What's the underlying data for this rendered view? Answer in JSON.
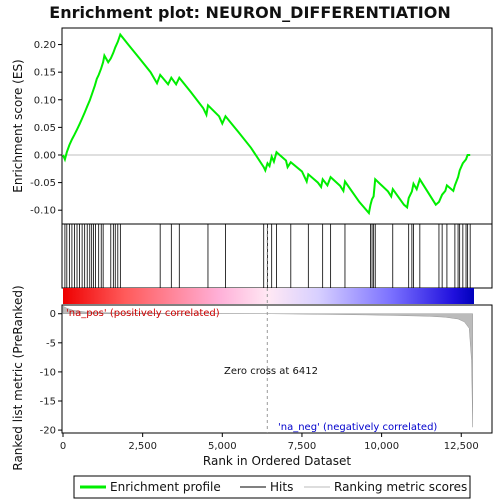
{
  "chart_data": {
    "type": "line",
    "title": "Enrichment plot: NEURON_DIFFERENTIATION",
    "xlabel": "Rank in Ordered Dataset",
    "ylabel_top": "Enrichment score (ES)",
    "ylabel_bottom": "Ranked list metric (PreRanked)",
    "xlim": [
      0,
      12900
    ],
    "ylim_top": [
      -0.125,
      0.23
    ],
    "ylim_bottom": [
      -20.5,
      1.5
    ],
    "x_ticks": [
      0,
      2500,
      5000,
      7500,
      10000,
      12500
    ],
    "x_tick_labels": [
      "0",
      "2,500",
      "5,000",
      "7,500",
      "10,000",
      "12,500"
    ],
    "y_ticks_top": [
      -0.1,
      -0.05,
      0.0,
      0.05,
      0.1,
      0.15,
      0.2
    ],
    "y_tick_labels_top": [
      "-0.10",
      "-0.05",
      "0.00",
      "0.05",
      "0.10",
      "0.15",
      "0.20"
    ],
    "y_ticks_bottom": [
      0,
      -5,
      -10,
      -15,
      -20
    ],
    "y_tick_labels_bottom": [
      "0",
      "-5",
      "-10",
      "-15",
      "-20"
    ],
    "colors": {
      "es_line": "#00ee00",
      "hits": "#000000",
      "metric": "#bbbbbb",
      "zero_line": "#999999",
      "pos_label": "#cc0000",
      "neg_label": "#0000cc"
    },
    "enrichment_profile": [
      [
        0,
        0.0
      ],
      [
        60,
        -0.008
      ],
      [
        120,
        0.005
      ],
      [
        200,
        0.018
      ],
      [
        280,
        0.028
      ],
      [
        360,
        0.037
      ],
      [
        440,
        0.046
      ],
      [
        520,
        0.056
      ],
      [
        600,
        0.066
      ],
      [
        680,
        0.077
      ],
      [
        760,
        0.088
      ],
      [
        840,
        0.099
      ],
      [
        920,
        0.112
      ],
      [
        1000,
        0.126
      ],
      [
        1060,
        0.138
      ],
      [
        1120,
        0.145
      ],
      [
        1200,
        0.157
      ],
      [
        1260,
        0.168
      ],
      [
        1300,
        0.18
      ],
      [
        1360,
        0.174
      ],
      [
        1420,
        0.168
      ],
      [
        1500,
        0.175
      ],
      [
        1580,
        0.185
      ],
      [
        1640,
        0.195
      ],
      [
        1720,
        0.205
      ],
      [
        1800,
        0.218
      ],
      [
        2050,
        0.2
      ],
      [
        2400,
        0.175
      ],
      [
        2750,
        0.15
      ],
      [
        2950,
        0.13
      ],
      [
        3050,
        0.145
      ],
      [
        3300,
        0.128
      ],
      [
        3400,
        0.14
      ],
      [
        3550,
        0.128
      ],
      [
        3650,
        0.14
      ],
      [
        4000,
        0.115
      ],
      [
        4400,
        0.085
      ],
      [
        4500,
        0.073
      ],
      [
        4550,
        0.09
      ],
      [
        4900,
        0.07
      ],
      [
        5000,
        0.057
      ],
      [
        5100,
        0.07
      ],
      [
        5500,
        0.042
      ],
      [
        5900,
        0.013
      ],
      [
        6300,
        -0.022
      ],
      [
        6350,
        -0.028
      ],
      [
        6420,
        -0.015
      ],
      [
        6480,
        -0.02
      ],
      [
        6550,
        -0.003
      ],
      [
        6620,
        -0.012
      ],
      [
        6700,
        0.005
      ],
      [
        7000,
        -0.01
      ],
      [
        7050,
        -0.022
      ],
      [
        7150,
        -0.013
      ],
      [
        7500,
        -0.03
      ],
      [
        7650,
        -0.048
      ],
      [
        7700,
        -0.035
      ],
      [
        8000,
        -0.05
      ],
      [
        8100,
        -0.058
      ],
      [
        8150,
        -0.044
      ],
      [
        8300,
        -0.055
      ],
      [
        8400,
        -0.04
      ],
      [
        8700,
        -0.056
      ],
      [
        8800,
        -0.065
      ],
      [
        8850,
        -0.048
      ],
      [
        9300,
        -0.085
      ],
      [
        9600,
        -0.105
      ],
      [
        9650,
        -0.09
      ],
      [
        9700,
        -0.08
      ],
      [
        9750,
        -0.075
      ],
      [
        9800,
        -0.044
      ],
      [
        10200,
        -0.066
      ],
      [
        10300,
        -0.075
      ],
      [
        10350,
        -0.062
      ],
      [
        10700,
        -0.09
      ],
      [
        10800,
        -0.095
      ],
      [
        10850,
        -0.078
      ],
      [
        10950,
        -0.066
      ],
      [
        11000,
        -0.052
      ],
      [
        11100,
        -0.062
      ],
      [
        11200,
        -0.044
      ],
      [
        11700,
        -0.09
      ],
      [
        11800,
        -0.085
      ],
      [
        11900,
        -0.072
      ],
      [
        12000,
        -0.065
      ],
      [
        12050,
        -0.055
      ],
      [
        12250,
        -0.065
      ],
      [
        12300,
        -0.055
      ],
      [
        12400,
        -0.04
      ],
      [
        12450,
        -0.028
      ],
      [
        12550,
        -0.015
      ],
      [
        12650,
        -0.008
      ],
      [
        12700,
        0.0
      ],
      [
        12780,
        0.0
      ]
    ],
    "hits": [
      60,
      120,
      200,
      280,
      360,
      440,
      520,
      600,
      680,
      760,
      840,
      900,
      960,
      1020,
      1120,
      1200,
      1260,
      1500,
      1580,
      1640,
      1720,
      1800,
      3050,
      3400,
      3650,
      4550,
      5100,
      6300,
      6420,
      6550,
      6700,
      7150,
      7700,
      8150,
      8400,
      8850,
      9650,
      9700,
      9750,
      9800,
      10350,
      10850,
      10950,
      11000,
      11200,
      11800,
      11900,
      12050,
      12300,
      12400,
      12450,
      12550,
      12650,
      12700,
      12780
    ],
    "metric_curve": [
      [
        0,
        1.3
      ],
      [
        100,
        1.0
      ],
      [
        300,
        0.6
      ],
      [
        700,
        0.3
      ],
      [
        1500,
        0.15
      ],
      [
        3000,
        0.07
      ],
      [
        5000,
        0.02
      ],
      [
        6412,
        0.0
      ],
      [
        8000,
        -0.1
      ],
      [
        9500,
        -0.2
      ],
      [
        10500,
        -0.3
      ],
      [
        11500,
        -0.45
      ],
      [
        12000,
        -0.6
      ],
      [
        12400,
        -0.9
      ],
      [
        12600,
        -1.4
      ],
      [
        12750,
        -2.5
      ],
      [
        12820,
        -8
      ],
      [
        12860,
        -19.5
      ]
    ],
    "zero_cross_rank": 6412,
    "annotations": {
      "zero_cross": "Zero cross at 6412",
      "pos_label": "'na_pos' (positively correlated)",
      "neg_label": "'na_neg' (negatively correlated)"
    },
    "legend": {
      "items": [
        "Enrichment profile",
        "Hits",
        "Ranking metric scores"
      ]
    }
  }
}
